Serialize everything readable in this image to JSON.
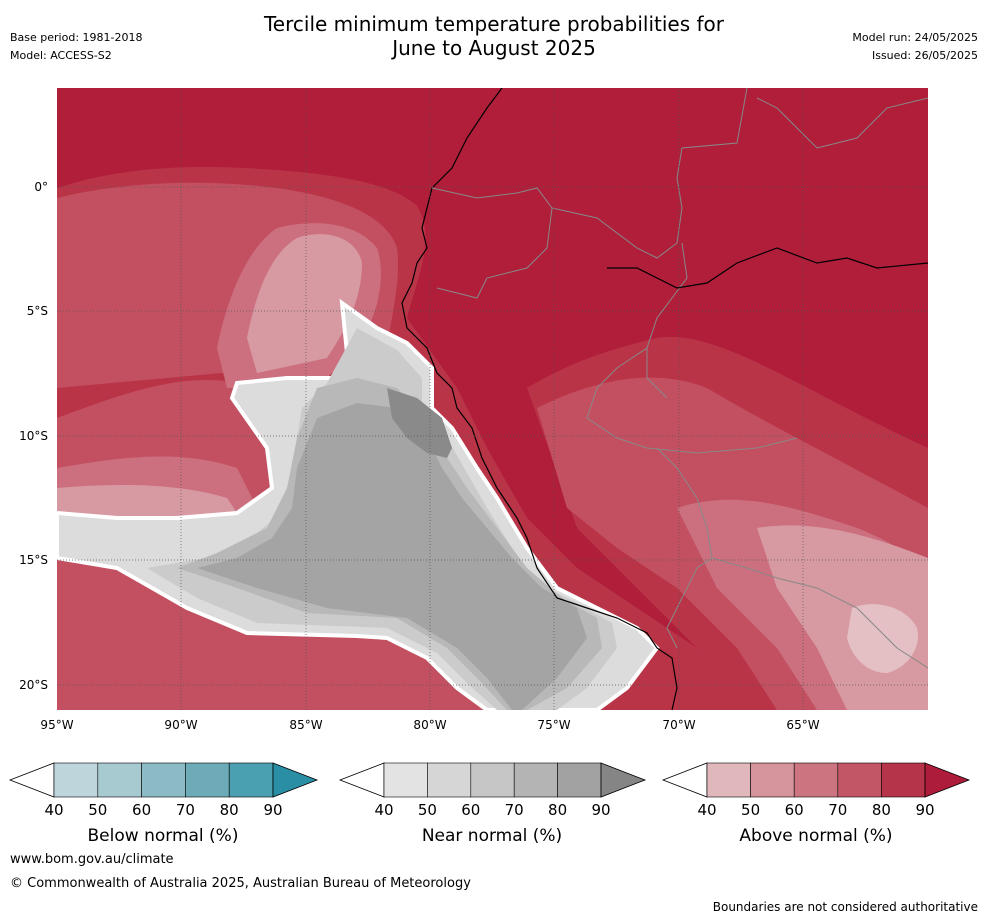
{
  "header": {
    "title_line1": "Tercile minimum temperature probabilities for",
    "title_line2": "June to August 2025",
    "base_period": "Base period: 1981-2018",
    "model": "Model: ACCESS-S2",
    "model_run": "Model run: 24/05/2025",
    "issued": "Issued: 26/05/2025"
  },
  "map": {
    "latitude_labels": [
      "0°",
      "5°S",
      "10°S",
      "15°S",
      "20°S"
    ],
    "longitude_labels": [
      "95°W",
      "90°W",
      "85°W",
      "80°W",
      "75°W",
      "70°W",
      "65°W"
    ],
    "colors": {
      "above_90": "#b01e3a",
      "above_80": "#ba3448",
      "above_70": "#c35060",
      "above_60": "#cc7080",
      "above_50": "#d89aa2",
      "above_40": "#e4c0c4",
      "near_50": "#dcdcdc",
      "near_60": "#cbcbcb",
      "near_70": "#b8b8b8",
      "near_80": "#a4a4a4",
      "near_90": "#8a8a8a",
      "coast": "#000000",
      "border": "#888888"
    }
  },
  "colorbars": [
    {
      "title": "Below normal (%)",
      "ticks": [
        "40",
        "50",
        "60",
        "70",
        "80",
        "90"
      ],
      "colors": [
        "#ffffff",
        "#bdd5db",
        "#a7c9d0",
        "#8cbac5",
        "#6eabb8",
        "#4aa0b0",
        "#2a8fa5"
      ]
    },
    {
      "title": "Near normal (%)",
      "ticks": [
        "40",
        "50",
        "60",
        "70",
        "80",
        "90"
      ],
      "colors": [
        "#ffffff",
        "#e3e3e3",
        "#d6d6d6",
        "#c6c6c6",
        "#b4b4b4",
        "#a2a2a2",
        "#858585"
      ]
    },
    {
      "title": "Above normal (%)",
      "ticks": [
        "40",
        "50",
        "60",
        "70",
        "80",
        "90"
      ],
      "colors": [
        "#ffffff",
        "#e0b8bc",
        "#d6959d",
        "#cc7480",
        "#c25666",
        "#b5344a",
        "#ad1c3a"
      ]
    }
  ],
  "footer": {
    "url": "www.bom.gov.au/climate",
    "copyright": "© Commonwealth of Australia 2025, Australian Bureau of Meteorology",
    "disclaimer": "Boundaries are not considered authoritative"
  }
}
